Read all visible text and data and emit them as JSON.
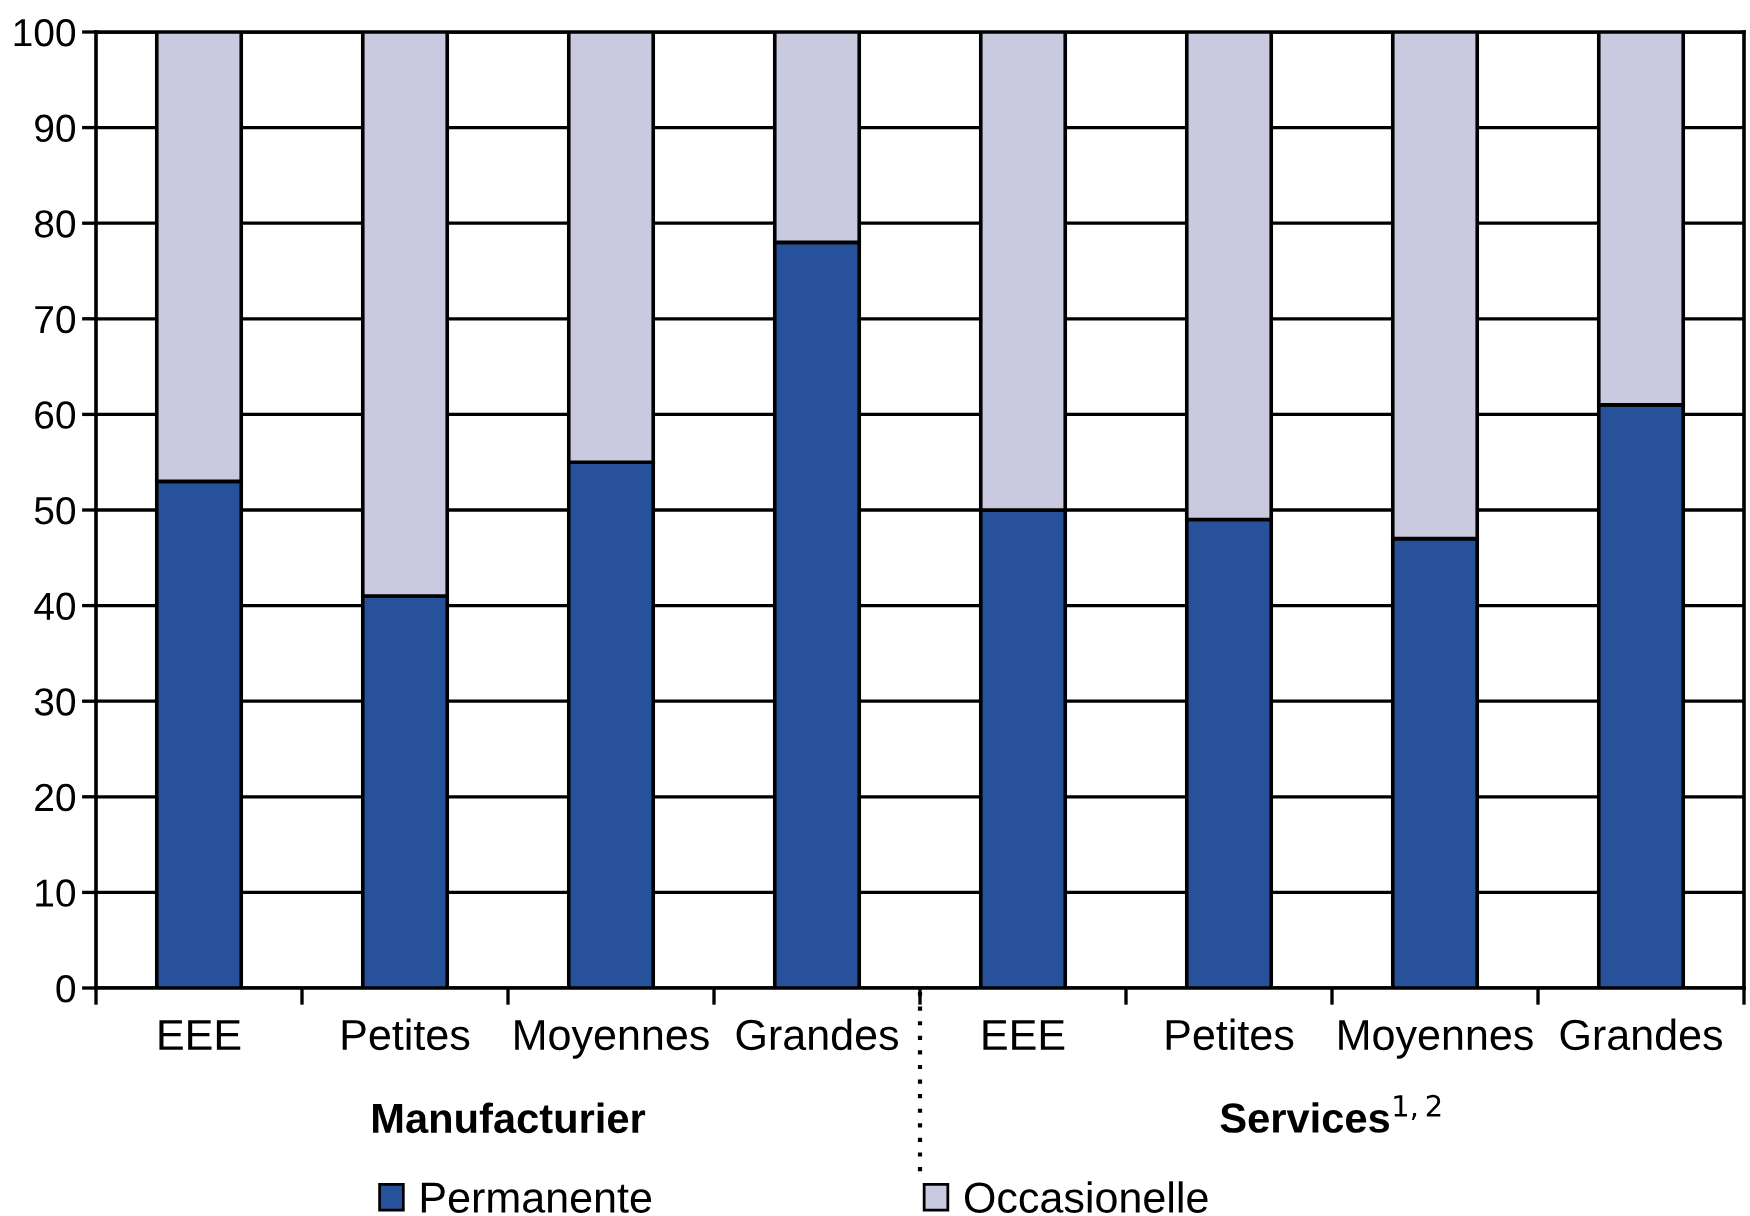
{
  "chart_data": {
    "type": "bar",
    "stacked": true,
    "categories": [
      "EEE",
      "Petites",
      "Moyennes",
      "Grandes",
      "EEE",
      "Petites",
      "Moyennes",
      "Grandes"
    ],
    "series": [
      {
        "name": "Permanente",
        "color": "#28519c",
        "values": [
          53,
          41,
          55,
          78,
          50,
          49,
          47,
          61
        ]
      },
      {
        "name": "Occasionelle",
        "color": "#c9c9e0",
        "values": [
          47,
          59,
          45,
          22,
          50,
          51,
          53,
          39
        ]
      }
    ],
    "ylim": [
      0,
      100
    ],
    "yticks": [
      0,
      10,
      20,
      30,
      40,
      50,
      60,
      70,
      80,
      90,
      100
    ],
    "grid": "y",
    "legend": "bottom",
    "annotations": [
      "Manufacturier",
      "Services$^{1,2}$"
    ]
  }
}
